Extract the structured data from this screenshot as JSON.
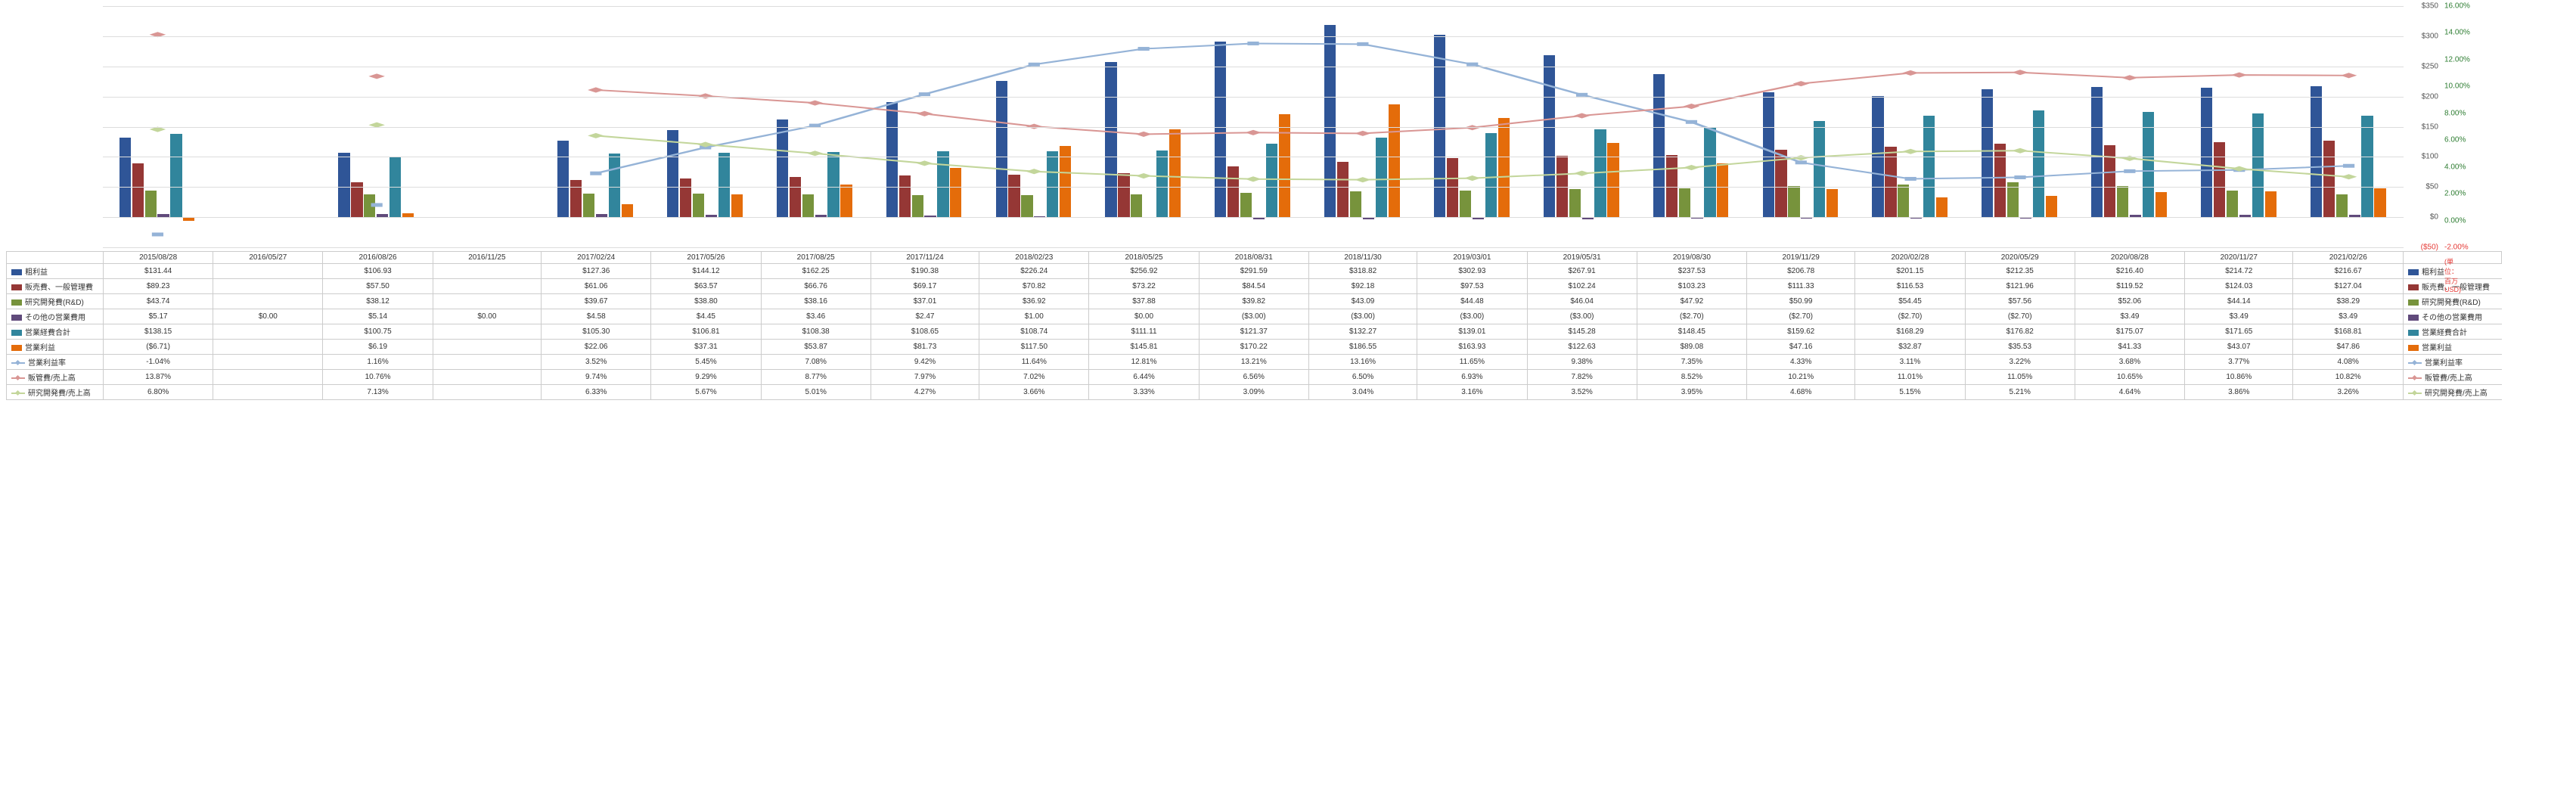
{
  "dates": [
    "2015/08/28",
    "2016/05/27",
    "2016/08/26",
    "2016/11/25",
    "2017/02/24",
    "2017/05/26",
    "2017/08/25",
    "2017/11/24",
    "2018/02/23",
    "2018/05/25",
    "2018/08/31",
    "2018/11/30",
    "2019/03/01",
    "2019/05/31",
    "2019/08/30",
    "2019/11/29",
    "2020/02/28",
    "2020/05/29",
    "2020/08/28",
    "2020/11/27",
    "2021/02/26"
  ],
  "unit_label": "(単位：百万USD)",
  "y_left": {
    "min": -50,
    "max": 350,
    "step": 50,
    "prefix": "$",
    "neg_format": "($50)"
  },
  "y_right": {
    "min": -2,
    "max": 16,
    "step": 2,
    "suffix": "%"
  },
  "series": [
    {
      "key": "gross_profit",
      "label": "粗利益",
      "type": "bar",
      "color": "#2f5597",
      "axis": "left",
      "fmt": "money",
      "values": [
        131.44,
        null,
        106.93,
        null,
        127.36,
        144.12,
        162.25,
        190.38,
        226.24,
        256.92,
        291.59,
        318.82,
        302.93,
        267.91,
        237.53,
        206.78,
        201.15,
        212.35,
        216.4,
        214.72,
        216.67
      ]
    },
    {
      "key": "sga",
      "label": "販売費、一般管理費",
      "type": "bar",
      "color": "#953735",
      "axis": "left",
      "fmt": "money",
      "values": [
        89.23,
        null,
        57.5,
        null,
        61.06,
        63.57,
        66.76,
        69.17,
        70.82,
        73.22,
        84.54,
        92.18,
        97.53,
        102.24,
        103.23,
        111.33,
        116.53,
        121.96,
        119.52,
        124.03,
        127.04
      ]
    },
    {
      "key": "rnd",
      "label": "研究開発費(R&D)",
      "type": "bar",
      "color": "#77933c",
      "axis": "left",
      "fmt": "money",
      "values": [
        43.74,
        null,
        38.12,
        null,
        39.67,
        38.8,
        38.16,
        37.01,
        36.92,
        37.88,
        39.82,
        43.09,
        44.48,
        46.04,
        47.92,
        50.99,
        54.45,
        57.56,
        52.06,
        44.14,
        38.29
      ]
    },
    {
      "key": "other_op",
      "label": "その他の営業費用",
      "type": "bar",
      "color": "#604a7b",
      "axis": "left",
      "fmt": "money",
      "values": [
        5.17,
        0.0,
        5.14,
        0.0,
        4.58,
        4.45,
        3.46,
        2.47,
        1.0,
        0.0,
        -3.0,
        -3.0,
        -3.0,
        -3.0,
        -2.7,
        -2.7,
        -2.7,
        -2.7,
        3.49,
        3.49,
        3.49
      ]
    },
    {
      "key": "op_exp_total",
      "label": "営業経費合計",
      "type": "bar",
      "color": "#31859c",
      "axis": "left",
      "fmt": "money",
      "values": [
        138.15,
        null,
        100.75,
        null,
        105.3,
        106.81,
        108.38,
        108.65,
        108.74,
        111.11,
        121.37,
        132.27,
        139.01,
        145.28,
        148.45,
        159.62,
        168.29,
        176.82,
        175.07,
        171.65,
        168.81
      ]
    },
    {
      "key": "op_income",
      "label": "営業利益",
      "type": "bar",
      "color": "#e46c0a",
      "axis": "left",
      "fmt": "money",
      "values": [
        -6.71,
        null,
        6.19,
        null,
        22.06,
        37.31,
        53.87,
        81.73,
        117.5,
        145.81,
        170.22,
        186.55,
        163.93,
        122.63,
        89.08,
        47.16,
        32.87,
        35.53,
        41.33,
        43.07,
        47.86
      ]
    },
    {
      "key": "op_margin",
      "label": "営業利益率",
      "type": "line",
      "color": "#95b3d7",
      "marker": "square",
      "axis": "right",
      "fmt": "percent",
      "values": [
        -1.04,
        null,
        1.16,
        null,
        3.52,
        5.45,
        7.08,
        9.42,
        11.64,
        12.81,
        13.21,
        13.16,
        11.65,
        9.38,
        7.35,
        4.33,
        3.11,
        3.22,
        3.68,
        3.77,
        4.08
      ]
    },
    {
      "key": "sga_ratio",
      "label": "販管費/売上高",
      "type": "line",
      "color": "#d99694",
      "marker": "diamond",
      "axis": "right",
      "fmt": "percent",
      "values": [
        13.87,
        null,
        10.76,
        null,
        9.74,
        9.29,
        8.77,
        7.97,
        7.02,
        6.44,
        6.56,
        6.5,
        6.93,
        7.82,
        8.52,
        10.21,
        11.01,
        11.05,
        10.65,
        10.86,
        10.82
      ]
    },
    {
      "key": "rnd_ratio",
      "label": "研究開発費/売上高",
      "type": "line",
      "color": "#c3d69b",
      "marker": "diamond",
      "axis": "right",
      "fmt": "percent",
      "values": [
        6.8,
        null,
        7.13,
        null,
        6.33,
        5.67,
        5.01,
        4.27,
        3.66,
        3.33,
        3.09,
        3.04,
        3.16,
        3.52,
        3.95,
        4.68,
        5.15,
        5.21,
        4.64,
        3.86,
        3.26
      ]
    }
  ]
}
